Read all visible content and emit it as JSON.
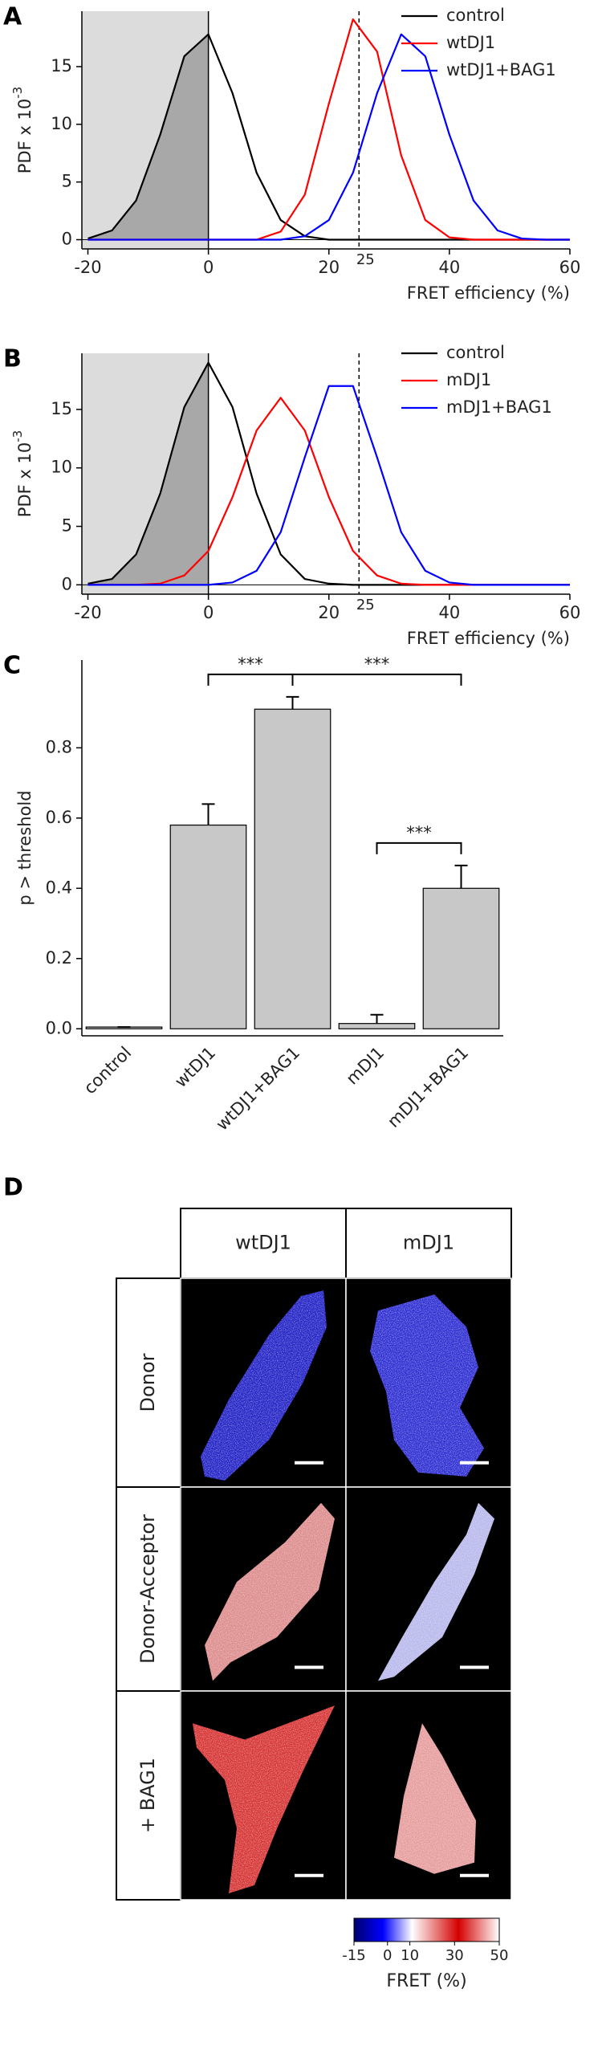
{
  "chart_data": [
    {
      "panel": "A",
      "type": "line",
      "x": [
        -20,
        -16,
        -12,
        -8,
        -4,
        0,
        4,
        8,
        12,
        16,
        20,
        24,
        28,
        32,
        36,
        40,
        44,
        48,
        52,
        56,
        60
      ],
      "xlim": [
        -21,
        60
      ],
      "xticks": [
        -20,
        0,
        20,
        40,
        60
      ],
      "ylim": [
        -0.8,
        19.8
      ],
      "yticks": [
        0,
        5,
        10,
        15
      ],
      "xlabel": "FRET efficiency (%)",
      "ylabel": "PDF x 10",
      "ylabel_exponent": "-3",
      "shade_to": 0,
      "vline": 25,
      "legend": "upper right",
      "series": [
        {
          "name": "control",
          "color": "#000000",
          "values": [
            0.1,
            0.8,
            3.4,
            9.1,
            15.9,
            17.8,
            12.7,
            5.8,
            1.7,
            0.3,
            0,
            0,
            0,
            0,
            0,
            0,
            0,
            0,
            0,
            0,
            0
          ]
        },
        {
          "name": "wtDJ1",
          "color": "#ff0000",
          "values": [
            0,
            0,
            0,
            0,
            0,
            0,
            0,
            0,
            0.7,
            3.9,
            11.8,
            19.1,
            16.3,
            7.3,
            1.7,
            0.2,
            0,
            0,
            0,
            0,
            0
          ]
        },
        {
          "name": "wtDJ1+BAG1",
          "color": "#0000ff",
          "values": [
            0,
            0,
            0,
            0,
            0,
            0,
            0,
            0,
            0,
            0.3,
            1.7,
            5.8,
            12.7,
            17.8,
            15.9,
            9.1,
            3.4,
            0.8,
            0.1,
            0,
            0
          ]
        }
      ]
    },
    {
      "panel": "B",
      "type": "line",
      "x": [
        -20,
        -16,
        -12,
        -8,
        -4,
        0,
        4,
        8,
        12,
        16,
        20,
        24,
        28,
        32,
        36,
        40,
        44,
        48,
        52,
        56,
        60
      ],
      "xlim": [
        -21,
        60
      ],
      "xticks": [
        -20,
        0,
        20,
        40,
        60
      ],
      "ylim": [
        -0.8,
        19.8
      ],
      "yticks": [
        0,
        5,
        10,
        15
      ],
      "xlabel": "FRET efficiency (%)",
      "ylabel": "PDF x 10",
      "ylabel_exponent": "-3",
      "shade_to": 0,
      "vline": 25,
      "legend": "upper right",
      "series": [
        {
          "name": "control",
          "color": "#000000",
          "values": [
            0.1,
            0.5,
            2.6,
            7.8,
            15.2,
            19,
            15.2,
            7.8,
            2.6,
            0.5,
            0.1,
            0,
            0,
            0,
            0,
            0,
            0,
            0,
            0,
            0,
            0
          ]
        },
        {
          "name": "mDJ1",
          "color": "#ff0000",
          "values": [
            0,
            0,
            0,
            0.1,
            0.8,
            2.9,
            7.5,
            13.2,
            16,
            13.2,
            7.5,
            2.9,
            0.8,
            0.1,
            0,
            0,
            0,
            0,
            0,
            0,
            0
          ]
        },
        {
          "name": "mDJ1+BAG1",
          "color": "#0000ff",
          "values": [
            0,
            0,
            0,
            0,
            0,
            0,
            0.2,
            1.2,
            4.5,
            10.9,
            17,
            17,
            10.9,
            4.5,
            1.2,
            0.2,
            0,
            0,
            0,
            0,
            0
          ]
        }
      ]
    },
    {
      "panel": "C",
      "type": "bar",
      "categories": [
        "control",
        "wtDJ1",
        "wtDJ1+BAG1",
        "mDJ1",
        "mDJ1+BAG1"
      ],
      "values": [
        0.005,
        0.58,
        0.91,
        0.015,
        0.4
      ],
      "errors": [
        0,
        0.06,
        0.035,
        0.025,
        0.065
      ],
      "color": "#c8c8c8",
      "ylim": [
        -0.02,
        1.05
      ],
      "yticks": [
        {
          "value": 0,
          "label": "0.0"
        },
        0.2,
        0.4,
        0.6,
        0.8
      ],
      "ylabel": "p > threshold",
      "significance": [
        {
          "from": 1,
          "to": 2,
          "label": "***"
        },
        {
          "from": 2,
          "to": 4,
          "label": "***"
        },
        {
          "from": 3,
          "to": 4,
          "label": "***"
        }
      ]
    }
  ],
  "figure_d": {
    "panel": "D",
    "columns": [
      "wtDJ1",
      "mDJ1"
    ],
    "rows": [
      "Donor",
      "Donor-Acceptor",
      "+ BAG1"
    ],
    "colorbar": {
      "lim": [
        -15,
        50
      ],
      "ticks": [
        -15,
        0,
        10,
        30,
        50
      ],
      "label": "FRET (%)"
    }
  }
}
